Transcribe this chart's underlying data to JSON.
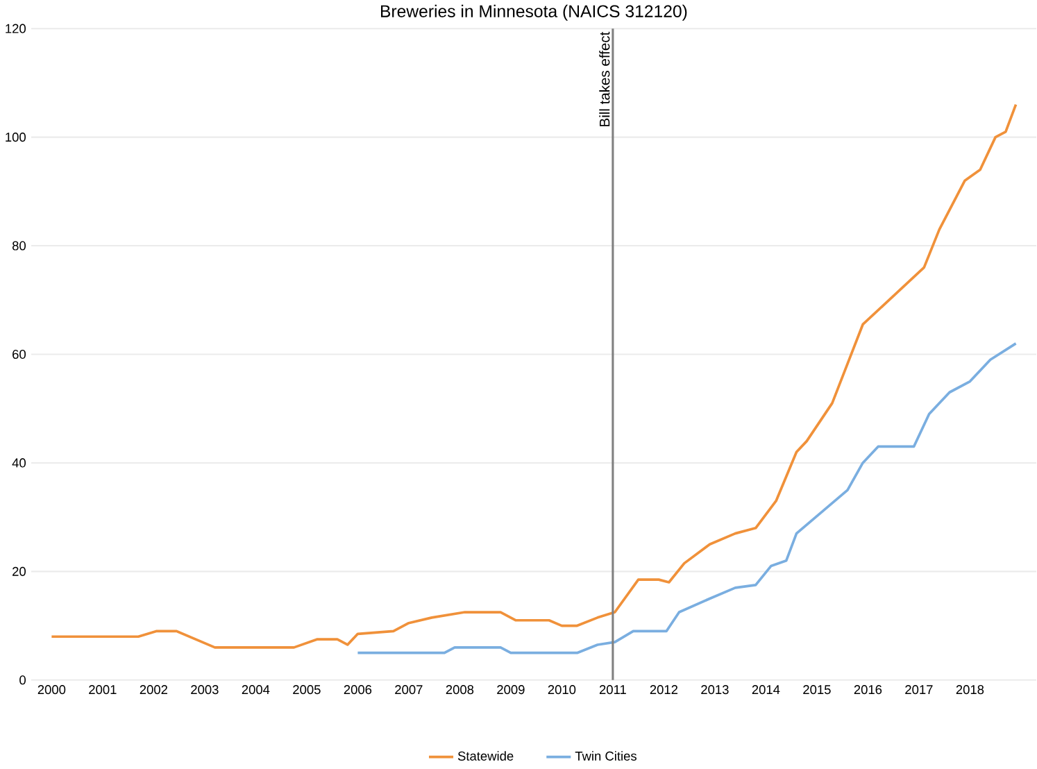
{
  "chart_data": {
    "type": "line",
    "title": "Breweries in Minnesota (NAICS 312120)",
    "xlim": [
      1999.6,
      2019.3
    ],
    "xticks": [
      2000,
      2001,
      2002,
      2003,
      2004,
      2005,
      2006,
      2007,
      2008,
      2009,
      2010,
      2011,
      2012,
      2013,
      2014,
      2015,
      2016,
      2017,
      2018
    ],
    "ylim": [
      0,
      120
    ],
    "yticks": [
      0,
      20,
      40,
      60,
      80,
      100,
      120
    ],
    "grid": "y",
    "legend": "bottom",
    "marker": "none",
    "line_style": "solid",
    "series": [
      {
        "name": "Statewide",
        "color": "#f0913a",
        "x": [
          2000.0,
          2001.7,
          2002.05,
          2002.45,
          2003.2,
          2004.75,
          2005.2,
          2005.6,
          2005.8,
          2006.0,
          2006.7,
          2007.0,
          2007.45,
          2008.1,
          2008.8,
          2009.1,
          2009.75,
          2010.0,
          2010.3,
          2010.7,
          2011.04,
          2011.5,
          2011.9,
          2012.1,
          2012.4,
          2012.9,
          2013.4,
          2013.8,
          2014.2,
          2014.6,
          2014.8,
          2015.3,
          2015.9,
          2016.3,
          2017.1,
          2017.4,
          2017.9,
          2018.2,
          2018.5,
          2018.7,
          2018.9
        ],
        "values": [
          8,
          8,
          9,
          9,
          6,
          6,
          7.5,
          7.5,
          6.5,
          8.5,
          9,
          10.5,
          11.5,
          12.5,
          12.5,
          11,
          11,
          10,
          10,
          11.5,
          12.5,
          18.5,
          18.5,
          18,
          21.5,
          25,
          27,
          28,
          33,
          42,
          44,
          51,
          65.5,
          69,
          76,
          83,
          92,
          94,
          100,
          101,
          106
        ]
      },
      {
        "name": "Twin Cities",
        "color": "#7aaee0",
        "x": [
          2006.0,
          2007.7,
          2007.9,
          2008.8,
          2009.0,
          2010.3,
          2010.7,
          2011.04,
          2011.4,
          2012.05,
          2012.3,
          2012.9,
          2013.4,
          2013.8,
          2014.1,
          2014.4,
          2014.6,
          2015.1,
          2015.6,
          2015.9,
          2016.2,
          2016.9,
          2017.2,
          2017.6,
          2018.0,
          2018.4,
          2018.9
        ],
        "values": [
          5,
          5,
          6,
          6,
          5,
          5,
          6.5,
          7,
          9,
          9,
          12.5,
          15,
          17,
          17.5,
          21,
          22,
          27,
          31,
          35,
          40,
          43,
          43,
          49,
          53,
          55,
          59,
          62
        ]
      }
    ],
    "ref_lines": [
      {
        "axis": "x",
        "value": 2011,
        "label": "Bill takes effect",
        "color": "#808080"
      }
    ]
  }
}
